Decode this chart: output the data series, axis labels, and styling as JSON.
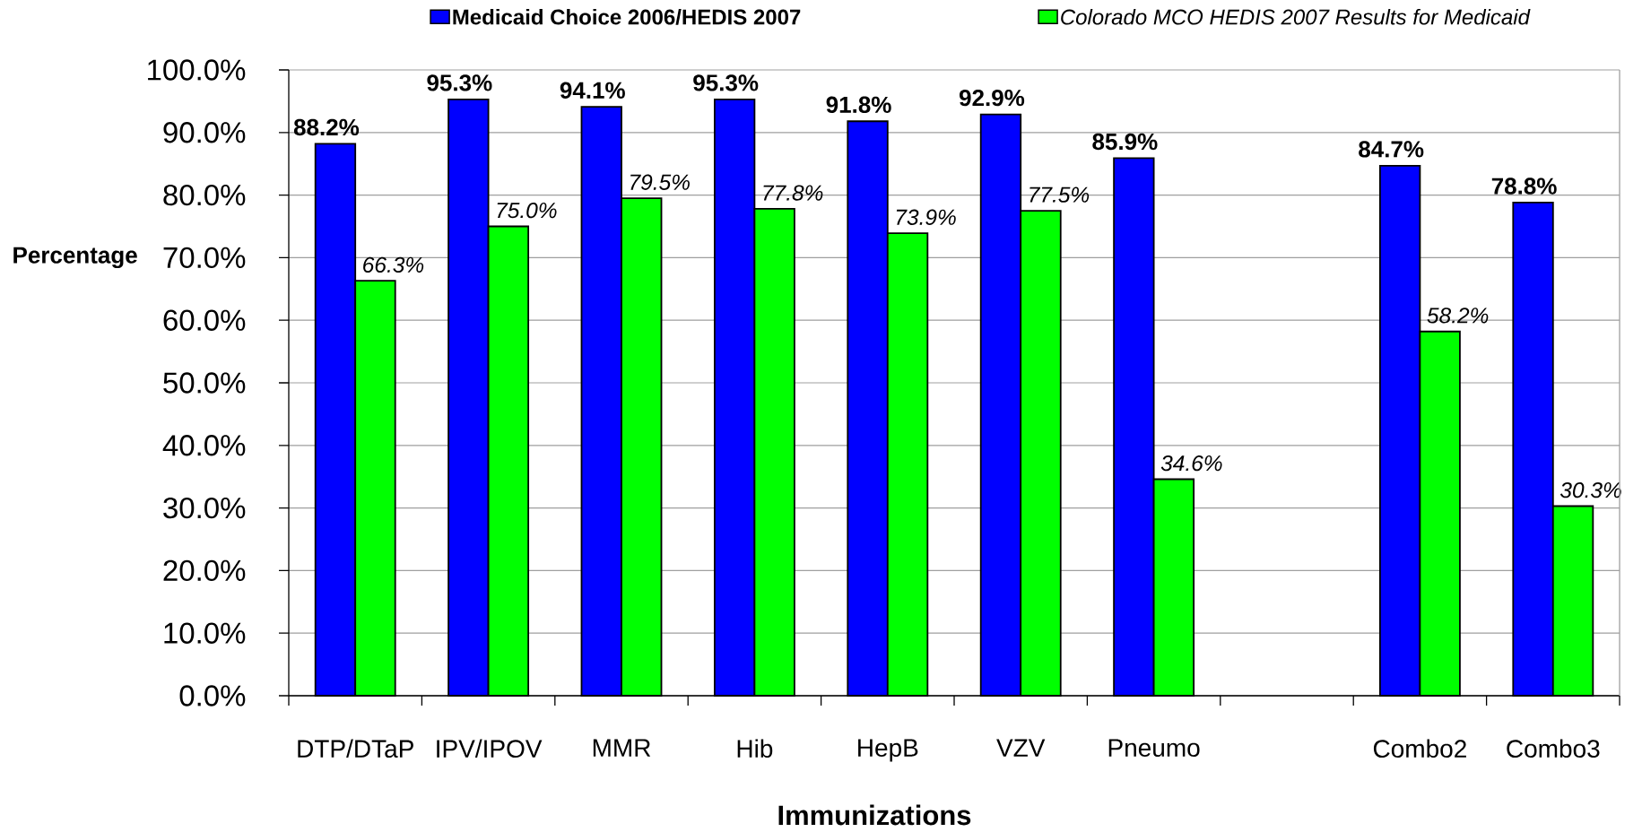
{
  "chart_data": {
    "type": "bar",
    "xlabel": "Immunizations",
    "ylabel": "Percentage",
    "categories": [
      "DTP/DTaP",
      "IPV/IPOV",
      "MMR",
      "Hib",
      "HepB",
      "VZV",
      "Pneumo",
      null,
      "Combo2",
      "Combo3"
    ],
    "series": [
      {
        "name": "Medicaid Choice 2006/HEDIS 2007",
        "color": "#0000ff",
        "values": [
          88.2,
          95.3,
          94.1,
          95.3,
          91.8,
          92.9,
          85.9,
          null,
          84.7,
          78.8
        ],
        "value_labels": [
          "88.2%",
          "95.3%",
          "94.1%",
          "95.3%",
          "91.8%",
          "92.9%",
          "85.9%",
          null,
          "84.7%",
          "78.8%"
        ]
      },
      {
        "name": "Colorado MCO HEDIS 2007 Results for Medicaid",
        "color": "#00ff00",
        "values": [
          66.3,
          75.0,
          79.5,
          77.8,
          73.9,
          77.5,
          34.6,
          null,
          58.2,
          30.3
        ],
        "value_labels": [
          "66.3%",
          "75.0%",
          "79.5%",
          "77.8%",
          "73.9%",
          "77.5%",
          "34.6%",
          null,
          "58.2%",
          "30.3%"
        ]
      }
    ],
    "ylim": [
      0,
      100
    ],
    "yticks": [
      {
        "value": 0,
        "label": "0.0%"
      },
      {
        "value": 10,
        "label": "10.0%"
      },
      {
        "value": 20,
        "label": "20.0%"
      },
      {
        "value": 30,
        "label": "30.0%"
      },
      {
        "value": 40,
        "label": "40.0%"
      },
      {
        "value": 50,
        "label": "50.0%"
      },
      {
        "value": 60,
        "label": "60.0%"
      },
      {
        "value": 70,
        "label": "70.0%"
      },
      {
        "value": 80,
        "label": "80.0%"
      },
      {
        "value": 90,
        "label": "90.0%"
      },
      {
        "value": 100,
        "label": "100.0%"
      }
    ],
    "grid": "y",
    "legend": "top"
  }
}
